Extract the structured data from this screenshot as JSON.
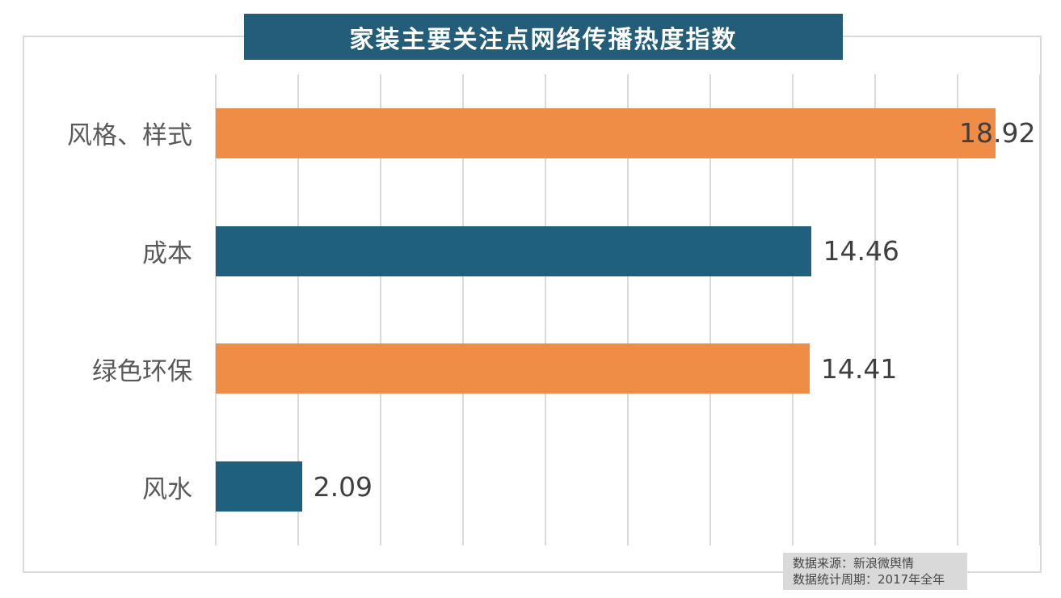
{
  "chart_data": {
    "type": "bar",
    "orientation": "horizontal",
    "title": "家装主要关注点网络传播热度指数",
    "categories": [
      "风格、样式",
      "成本",
      "绿色环保",
      "风水"
    ],
    "values": [
      18.92,
      14.46,
      14.41,
      2.09
    ],
    "value_labels": [
      "18.92",
      "14.46",
      "14.41",
      "2.09"
    ],
    "xlabel": "",
    "ylabel": "",
    "xlim": [
      0,
      20
    ],
    "gridline_step": 2,
    "grid": "vertical-only",
    "legend": "none",
    "bar_colors": [
      "#ef8c46",
      "#1f607f",
      "#ef8c46",
      "#1f607f"
    ]
  },
  "colors": {
    "title_bg": "#245d79",
    "title_text": "#ffffff",
    "orange_series": "#ef8c46",
    "teal_series": "#1f607f",
    "gridline": "#d9d9d9",
    "frame_border": "#d9d9d9",
    "category_text": "#595959",
    "value_text": "#3f3f3f",
    "footnote_bg": "#d9d9d9",
    "footnote_text": "#474747"
  },
  "footnote": {
    "line1": "数据来源：新浪微舆情",
    "line2": "数据统计周期：2017年全年"
  }
}
